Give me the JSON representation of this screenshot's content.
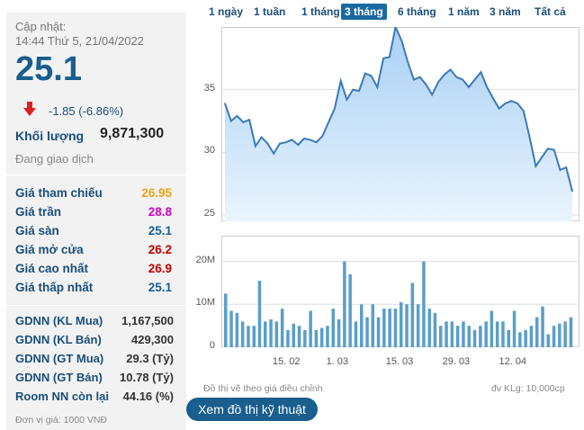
{
  "stock": {
    "updated_label": "Cập nhật:",
    "updated_time": "14:44 Thứ 5, 21/04/2022",
    "price": "25.1",
    "change": "-1.85 (-6.86%)",
    "volume_label": "Khối lượng",
    "volume": "9,871,300",
    "status": "Đang giao dịch"
  },
  "prices": [
    {
      "label": "Giá tham chiếu",
      "value": "26.95",
      "color": "#e8a317"
    },
    {
      "label": "Giá trần",
      "value": "28.8",
      "color": "#d100c8"
    },
    {
      "label": "Giá sàn",
      "value": "25.1",
      "color": "#1a5e8e"
    },
    {
      "label": "Giá mở cửa",
      "value": "26.2",
      "color": "#c00000"
    },
    {
      "label": "Giá cao nhất",
      "value": "26.9",
      "color": "#c00000"
    },
    {
      "label": "Giá thấp nhất",
      "value": "25.1",
      "color": "#1a5e8e"
    }
  ],
  "foreign": [
    {
      "label": "GDNN (KL Mua)",
      "value": "1,167,500"
    },
    {
      "label": "GDNN (KL Bán)",
      "value": "429,300"
    },
    {
      "label": "GDNN (GT Mua)",
      "value": "29.3 (Tỷ)"
    },
    {
      "label": "GDNN (GT Bán)",
      "value": "10.78 (Tỷ)"
    },
    {
      "label": "Room NN còn lại",
      "value": "44.16 (%)"
    }
  ],
  "unit_note": "Đơn vị giá: 1000 VNĐ",
  "tabs": [
    "1 ngày",
    "1 tuần",
    "1 tháng",
    "3 tháng",
    "6 tháng",
    "1 năm",
    "3 năm",
    "Tất cả"
  ],
  "active_tab": "3 tháng",
  "chart_notes": {
    "adjusted": "Đồ thị vẽ theo giá điều chỉnh",
    "volume_unit": "đv KLg: 10,000cp"
  },
  "button_label": "Xem đồ thị kỹ thuật",
  "chart_data": [
    {
      "type": "area",
      "ylim": [
        24.5,
        40
      ],
      "yticks": [
        25,
        30,
        35
      ],
      "xticks": [
        "15. 02",
        "1. 03",
        "15. 03",
        "29. 03",
        "12. 04"
      ],
      "colors": {
        "line": "#3a7ab8",
        "fill_top": "#a9d0f5",
        "fill_bottom": "#eaf4fd"
      },
      "values": [
        33.9,
        32.5,
        32.9,
        32.4,
        32.6,
        30.5,
        31.2,
        30.7,
        29.9,
        30.7,
        30.8,
        31.0,
        30.6,
        31.1,
        31.0,
        30.8,
        31.3,
        32.4,
        33.5,
        35.7,
        34.2,
        35.0,
        34.9,
        36.3,
        36.1,
        35.2,
        37.5,
        37.6,
        40.0,
        38.9,
        37.2,
        35.8,
        36.0,
        35.4,
        34.6,
        35.6,
        36.2,
        36.6,
        36.0,
        35.8,
        35.2,
        35.8,
        36.4,
        35.2,
        34.3,
        33.5,
        33.9,
        34.1,
        33.9,
        33.3,
        31.2,
        28.9,
        29.6,
        30.3,
        30.2,
        28.6,
        28.8,
        26.9
      ]
    },
    {
      "type": "bar",
      "ylim": [
        0,
        26
      ],
      "yticks_labels": [
        "0",
        "10M",
        "20M"
      ],
      "yticks": [
        0,
        10,
        20
      ],
      "color": "#5b9ec9",
      "values": [
        12.5,
        8.5,
        8,
        6,
        5,
        5,
        15.5,
        6,
        6.5,
        6,
        9,
        4,
        5.5,
        5,
        4,
        8.5,
        4,
        4.5,
        5,
        9,
        6.5,
        20,
        17,
        6,
        10,
        7,
        10,
        7,
        9,
        9,
        9,
        10.5,
        10,
        15,
        10,
        20,
        9,
        8,
        5,
        6,
        6,
        5,
        6,
        5,
        4,
        5,
        6,
        8.5,
        6,
        6,
        4,
        8.5,
        3.5,
        4,
        5,
        7,
        9.5,
        3,
        5,
        5.5,
        6,
        7
      ]
    }
  ]
}
